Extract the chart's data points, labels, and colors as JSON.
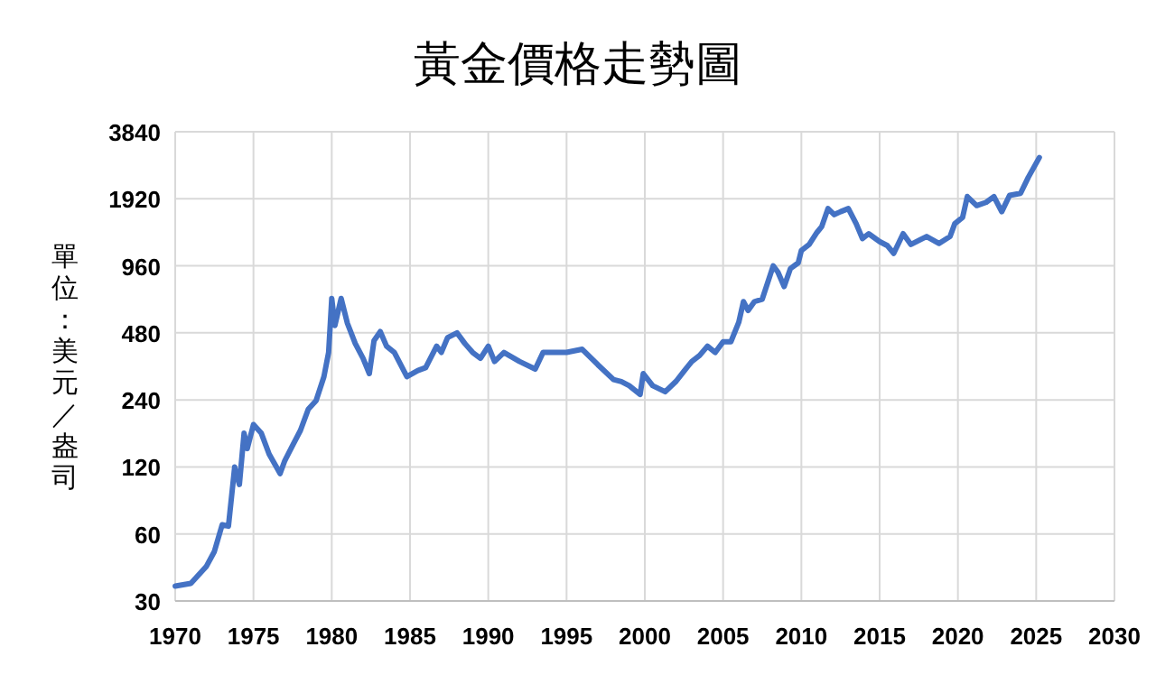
{
  "chart_data": {
    "type": "line",
    "title": "黃金價格走勢圖",
    "ylabel": "單位：美元／盎司",
    "log": true,
    "grid": true,
    "marker": "none",
    "line_style": "solid",
    "xlim": [
      1970,
      2030
    ],
    "xticks": [
      1970,
      1975,
      1980,
      1985,
      1990,
      1995,
      2000,
      2005,
      2010,
      2015,
      2020,
      2025,
      2030
    ],
    "ylim": [
      30,
      3840
    ],
    "yticks": [
      30,
      60,
      120,
      240,
      480,
      960,
      1920,
      3840
    ],
    "series": [
      {
        "color": "#4472c4",
        "x": [
          1970,
          1971,
          1972,
          1972.5,
          1973,
          1973.4,
          1973.8,
          1974.1,
          1974.4,
          1974.6,
          1975,
          1975.5,
          1976,
          1976.7,
          1977,
          1977.5,
          1978,
          1978.5,
          1979,
          1979.5,
          1979.8,
          1980.0,
          1980.2,
          1980.6,
          1981,
          1981.5,
          1982,
          1982.4,
          1982.7,
          1983.1,
          1983.5,
          1984,
          1984.8,
          1985.5,
          1986,
          1986.7,
          1987,
          1987.4,
          1988,
          1988.5,
          1989,
          1989.5,
          1990,
          1990.4,
          1991,
          1992,
          1993,
          1993.5,
          1994,
          1995,
          1996,
          1997,
          1998,
          1998.5,
          1999,
          1999.7,
          1999.9,
          2000.5,
          2001.3,
          2002,
          2002.5,
          2003,
          2003.5,
          2004,
          2004.5,
          2005,
          2005.5,
          2006,
          2006.3,
          2006.6,
          2007,
          2007.5,
          2008.2,
          2008.5,
          2008.9,
          2009.3,
          2009.8,
          2010,
          2010.5,
          2011,
          2011.3,
          2011.7,
          2012.1,
          2012.5,
          2013,
          2013.5,
          2013.9,
          2014.3,
          2015,
          2015.5,
          2015.9,
          2016.5,
          2017,
          2018,
          2018.8,
          2019.5,
          2019.8,
          2020.3,
          2020.6,
          2021.2,
          2021.8,
          2022.3,
          2022.8,
          2023.3,
          2024,
          2024.5,
          2025.2
        ],
        "values": [
          35,
          36,
          43,
          50,
          66,
          65,
          120,
          100,
          170,
          145,
          186,
          170,
          137,
          112,
          128,
          150,
          175,
          218,
          238,
          305,
          392,
          685,
          518,
          685,
          530,
          430,
          369,
          315,
          443,
          486,
          418,
          392,
          305,
          325,
          335,
          418,
          392,
          457,
          480,
          430,
          392,
          369,
          418,
          357,
          392,
          357,
          330,
          392,
          392,
          392,
          405,
          345,
          296,
          290,
          278,
          254,
          315,
          278,
          261,
          291,
          323,
          357,
          380,
          418,
          392,
          438,
          438,
          535,
          663,
          605,
          663,
          680,
          960,
          900,
          775,
          933,
          990,
          1125,
          1197,
          1357,
          1440,
          1735,
          1630,
          1680,
          1735,
          1485,
          1272,
          1338,
          1233,
          1182,
          1092,
          1338,
          1197,
          1300,
          1210,
          1300,
          1485,
          1585,
          1965,
          1790,
          1850,
          1965,
          1680,
          1990,
          2030,
          2400,
          2940
        ]
      }
    ]
  }
}
